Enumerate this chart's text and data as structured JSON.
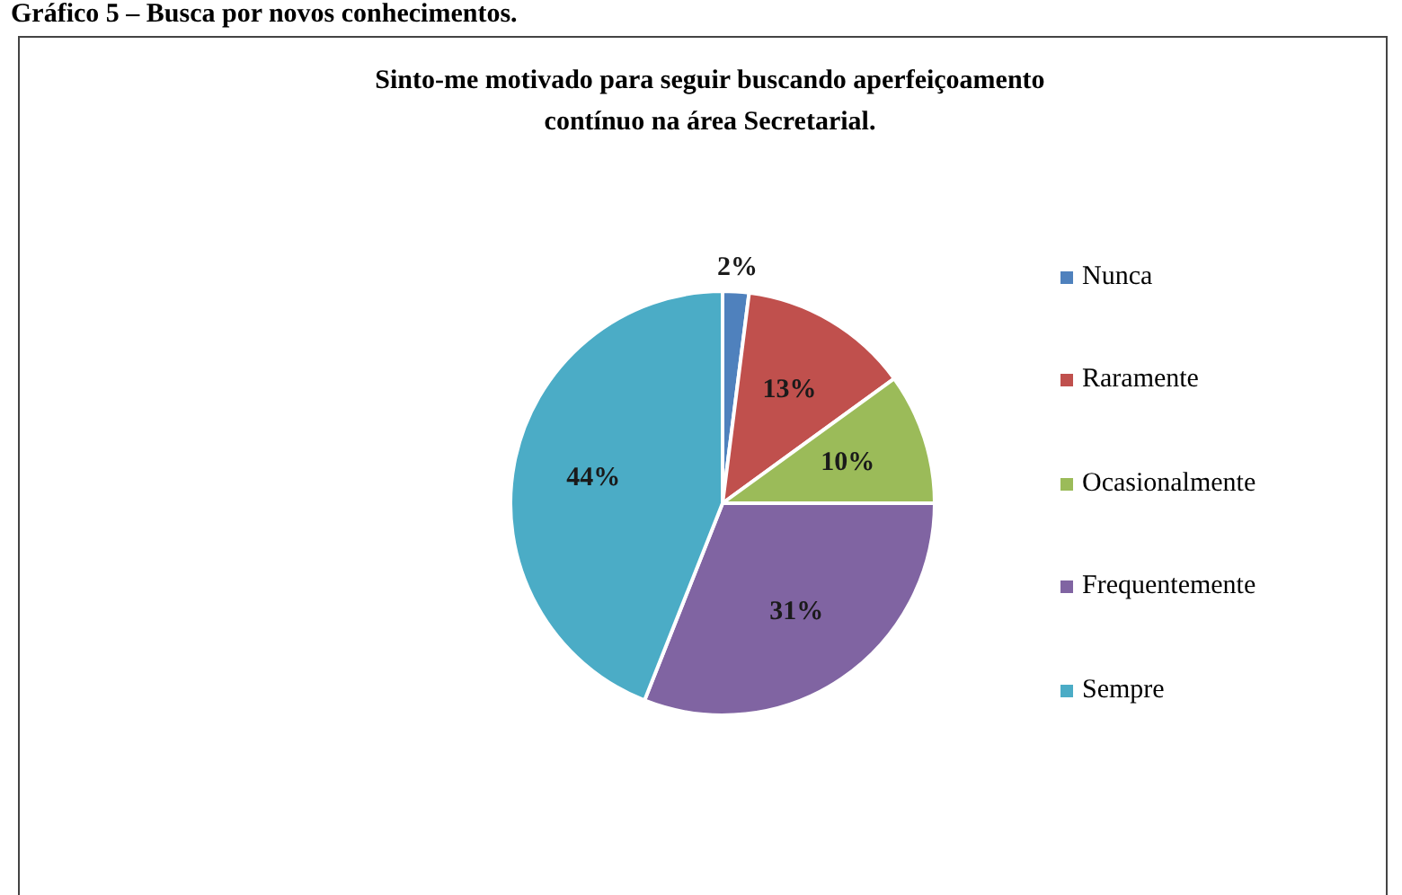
{
  "chart_data": {
    "type": "pie",
    "title": "Sinto-me motivado para seguir buscando aperfeiçoamento contínuo na área Secretarial.",
    "annotations": [
      "Gráfico 5 – Busca por novos conhecimentos."
    ],
    "categories": [
      "Nunca",
      "Raramente",
      "Ocasionalmente",
      "Frequentemente",
      "Sempre"
    ],
    "values": [
      2,
      13,
      10,
      31,
      44
    ],
    "colors": [
      "#4f81bd",
      "#c0504d",
      "#9bbb59",
      "#8064a2",
      "#4bacc6"
    ],
    "value_labels": [
      "2%",
      "13%",
      "10%",
      "31%",
      "44%"
    ],
    "legend": "right"
  }
}
